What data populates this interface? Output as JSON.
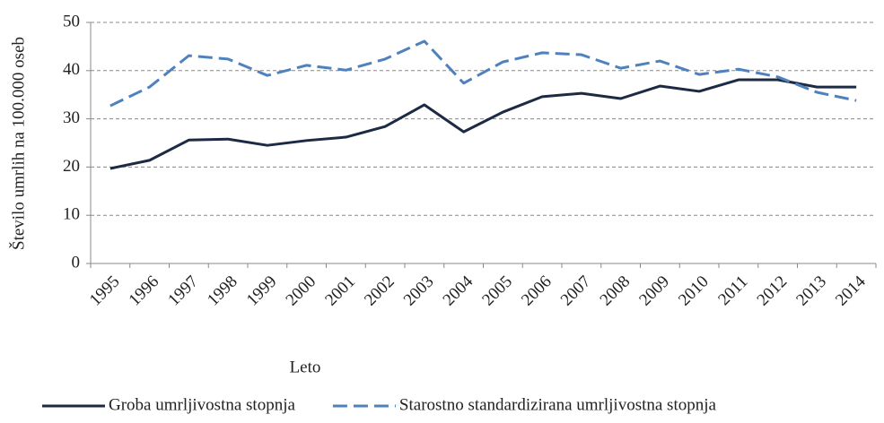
{
  "chart_data": {
    "type": "line",
    "x_label": "Leto",
    "y_label": "Število umrlih na 100.000 oseb",
    "categories": [
      "1995",
      "1996",
      "1997",
      "1998",
      "1999",
      "2000",
      "2001",
      "2002",
      "2003",
      "2004",
      "2005",
      "2006",
      "2007",
      "2008",
      "2009",
      "2010",
      "2011",
      "2012",
      "2013",
      "2014"
    ],
    "series": [
      {
        "name": "Groba umrljivostna stopnja",
        "color": "#1c2a44",
        "dash": false,
        "values": [
          19.7,
          21.4,
          25.6,
          25.8,
          24.5,
          25.5,
          26.2,
          28.4,
          32.9,
          27.3,
          31.4,
          34.6,
          35.3,
          34.2,
          36.8,
          35.7,
          38.1,
          38.1,
          36.6,
          36.6
        ]
      },
      {
        "name": "Starostno standardizirana umrljivostna stopnja",
        "color": "#4f81bd",
        "dash": true,
        "values": [
          32.7,
          36.6,
          43.1,
          42.4,
          39.0,
          41.1,
          40.1,
          42.4,
          46.1,
          37.4,
          41.8,
          43.7,
          43.3,
          40.5,
          42.0,
          39.2,
          40.3,
          38.7,
          35.5,
          33.8
        ]
      }
    ],
    "ylim": [
      0,
      50
    ],
    "yticks": [
      0,
      10,
      20,
      30,
      40,
      50
    ],
    "grid": true,
    "legend": "bottom"
  }
}
